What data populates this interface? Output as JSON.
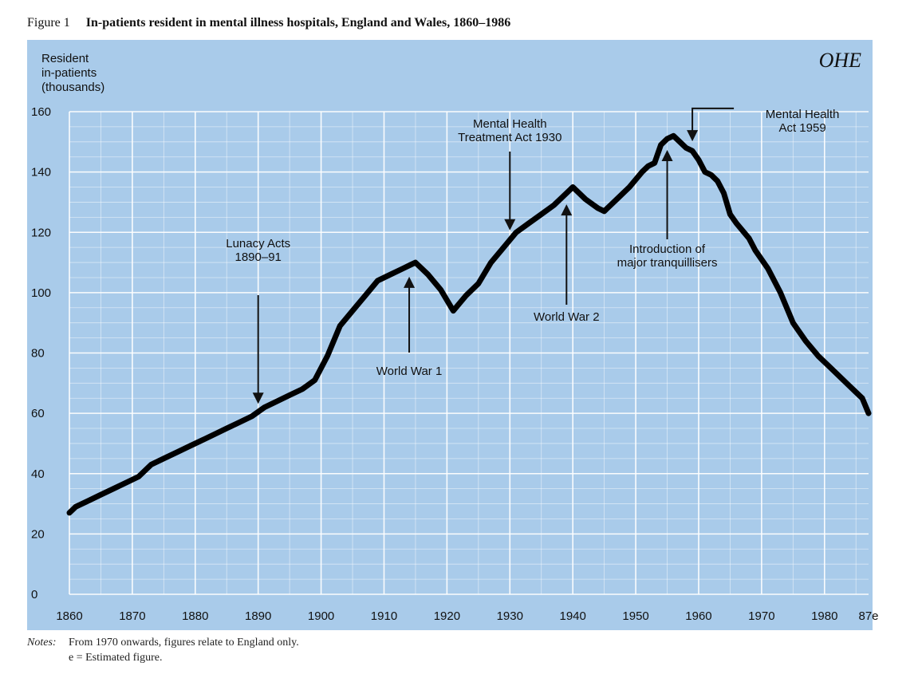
{
  "figure_label": "Figure 1",
  "title": "In-patients resident in mental illness hospitals, England and Wales, 1860–1986",
  "logo_text": "OHE",
  "notes": {
    "label": "Notes:",
    "lines": [
      "From 1970 onwards, figures relate to England only.",
      "e = Estimated figure."
    ]
  },
  "chart_data": {
    "type": "line",
    "title": "In-patients resident in mental illness hospitals, England and Wales, 1860–1986",
    "ylabel_lines": [
      "Resident",
      "in-patients",
      "(thousands)"
    ],
    "xlabel": "",
    "xlim": [
      1860,
      1987
    ],
    "ylim": [
      0,
      160
    ],
    "grid": true,
    "x_ticks": [
      {
        "value": 1860,
        "label": "1860"
      },
      {
        "value": 1870,
        "label": "1870"
      },
      {
        "value": 1880,
        "label": "1880"
      },
      {
        "value": 1890,
        "label": "1890"
      },
      {
        "value": 1900,
        "label": "1900"
      },
      {
        "value": 1910,
        "label": "1910"
      },
      {
        "value": 1920,
        "label": "1920"
      },
      {
        "value": 1930,
        "label": "1930"
      },
      {
        "value": 1940,
        "label": "1940"
      },
      {
        "value": 1950,
        "label": "1950"
      },
      {
        "value": 1960,
        "label": "1960"
      },
      {
        "value": 1970,
        "label": "1970"
      },
      {
        "value": 1980,
        "label": "1980"
      },
      {
        "value": 1987,
        "label": "87e"
      }
    ],
    "y_ticks": [
      0,
      20,
      40,
      60,
      80,
      100,
      120,
      140,
      160
    ],
    "series": [
      {
        "color": "#000000",
        "x": [
          1860,
          1861,
          1863,
          1865,
          1867,
          1869,
          1871,
          1873,
          1875,
          1877,
          1879,
          1881,
          1883,
          1885,
          1887,
          1889,
          1891,
          1893,
          1895,
          1897,
          1899,
          1901,
          1903,
          1905,
          1907,
          1909,
          1911,
          1913,
          1914,
          1915,
          1917,
          1919,
          1921,
          1923,
          1925,
          1927,
          1929,
          1931,
          1933,
          1935,
          1937,
          1939,
          1940,
          1942,
          1944,
          1945,
          1947,
          1949,
          1951,
          1952,
          1953,
          1954,
          1955,
          1956,
          1957,
          1958,
          1959,
          1960,
          1961,
          1962,
          1963,
          1964,
          1965,
          1966,
          1968,
          1969,
          1971,
          1973,
          1975,
          1977,
          1979,
          1981,
          1983,
          1984,
          1985,
          1986,
          1987
        ],
        "y": [
          27,
          29,
          31,
          33,
          35,
          37,
          39,
          43,
          45,
          47,
          49,
          51,
          53,
          55,
          57,
          59,
          62,
          64,
          66,
          68,
          71,
          79,
          89,
          94,
          99,
          104,
          106,
          108,
          109,
          110,
          106,
          101,
          94,
          99,
          103,
          110,
          115,
          120,
          123,
          126,
          129,
          133,
          135,
          131,
          128,
          127,
          131,
          135,
          140,
          142,
          143,
          149,
          151,
          152,
          150,
          148,
          147,
          144,
          140,
          139,
          137,
          133,
          126,
          123,
          118,
          114,
          108,
          100,
          90,
          84,
          79,
          75,
          71,
          69,
          67,
          65,
          60
        ]
      }
    ],
    "annotations": [
      {
        "lines": [
          "Lunacy Acts",
          "1890–91"
        ],
        "x": 1890,
        "arrow": "down"
      },
      {
        "lines": [
          "World War 1"
        ],
        "x": 1914,
        "arrow": "up"
      },
      {
        "lines": [
          "Mental Health",
          "Treatment Act 1930"
        ],
        "x": 1930,
        "arrow": "down"
      },
      {
        "lines": [
          "World War 2"
        ],
        "x": 1939,
        "arrow": "up"
      },
      {
        "lines": [
          "Introduction of",
          "major tranquillisers"
        ],
        "x": 1955,
        "arrow": "up"
      },
      {
        "lines": [
          "Mental Health",
          "Act 1959"
        ],
        "x": 1959,
        "arrow": "down"
      }
    ]
  }
}
